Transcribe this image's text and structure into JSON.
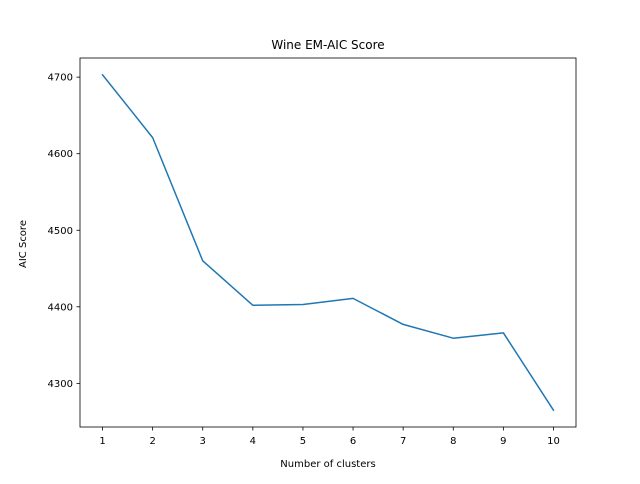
{
  "chart_data": {
    "type": "line",
    "title": "Wine EM-AIC Score",
    "xlabel": "Number of clusters",
    "ylabel": "AIC Score",
    "x": [
      1,
      2,
      3,
      4,
      5,
      6,
      7,
      8,
      9,
      10
    ],
    "series": [
      {
        "values": [
          4703,
          4621,
          4460,
          4402,
          4403,
          4411,
          4377,
          4359,
          4366,
          4265
        ],
        "color": "#1f77b4"
      }
    ],
    "xticks": [
      "1",
      "2",
      "3",
      "4",
      "5",
      "6",
      "7",
      "8",
      "9",
      "10"
    ],
    "yticks": [
      "4300",
      "4400",
      "4500",
      "4600",
      "4700"
    ],
    "xlim": [
      0.55,
      10.45
    ],
    "ylim": [
      4243,
      4725
    ],
    "grid": false,
    "legend": "none"
  }
}
